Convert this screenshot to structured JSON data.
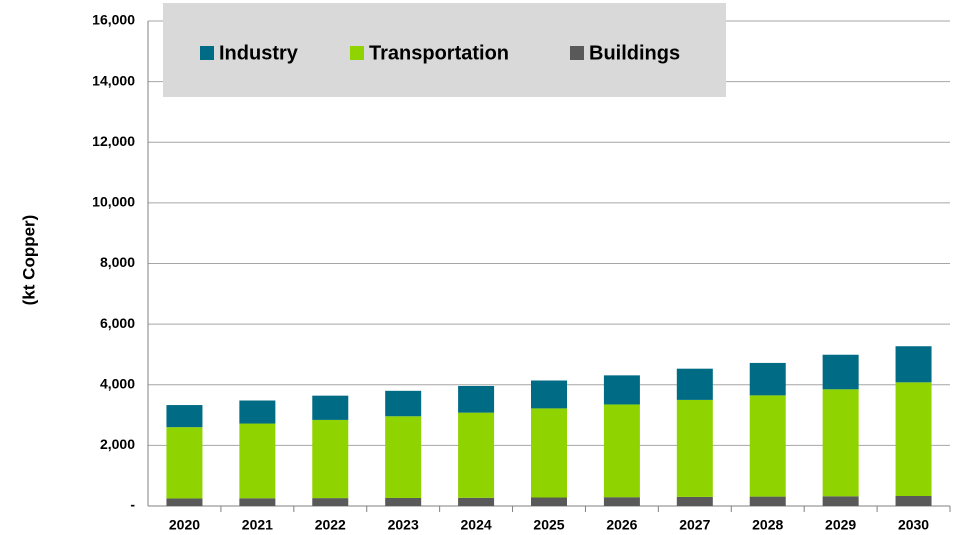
{
  "chart_data": {
    "type": "stacked_bar",
    "y_label": "(kt Copper)",
    "categories": [
      "2020",
      "2021",
      "2022",
      "2023",
      "2024",
      "2025",
      "2026",
      "2027",
      "2028",
      "2029",
      "2030"
    ],
    "series": [
      {
        "name": "Industry",
        "color": "#006b84",
        "values": [
          730,
          760,
          800,
          840,
          880,
          920,
          960,
          1030,
          1070,
          1140,
          1190
        ]
      },
      {
        "name": "Transportation",
        "color": "#8fd400",
        "values": [
          2350,
          2465,
          2580,
          2695,
          2810,
          2940,
          3060,
          3200,
          3340,
          3530,
          3750
        ]
      },
      {
        "name": "Buildings",
        "color": "#595959",
        "values": [
          250,
          255,
          260,
          265,
          270,
          280,
          290,
          300,
          310,
          320,
          330
        ]
      }
    ],
    "ylim": [
      0,
      16000
    ],
    "yticks": [
      {
        "value": 0,
        "label": "-"
      },
      {
        "value": 2000,
        "label": "2,000"
      },
      {
        "value": 4000,
        "label": "4,000"
      },
      {
        "value": 6000,
        "label": "6,000"
      },
      {
        "value": 8000,
        "label": "8,000"
      },
      {
        "value": 10000,
        "label": "10,000"
      },
      {
        "value": 12000,
        "label": "12,000"
      },
      {
        "value": 14000,
        "label": "14,000"
      },
      {
        "value": 16000,
        "label": "16,000"
      }
    ],
    "grid": true
  }
}
